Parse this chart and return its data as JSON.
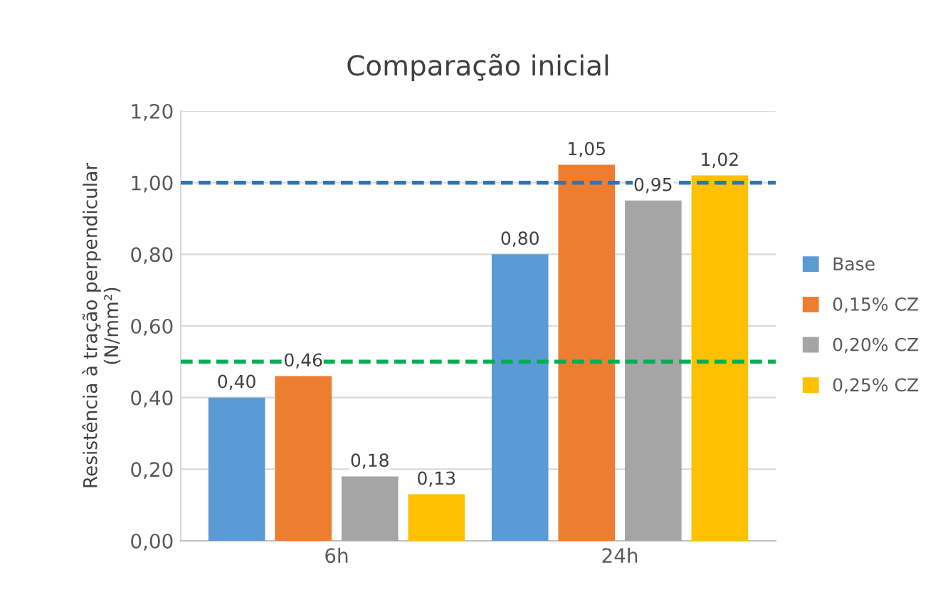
{
  "chart_data": {
    "type": "bar",
    "title": "Comparação inicial",
    "ylabel": "Resistência à tração perpendicular\n(N/mm²)",
    "categories": [
      "6h",
      "24h"
    ],
    "series": [
      {
        "name": "Base",
        "color": "#5b9bd5",
        "values": [
          0.4,
          0.8
        ],
        "value_labels": [
          "0,40",
          "0,80"
        ]
      },
      {
        "name": "0,15% CZ",
        "color": "#ed7d31",
        "values": [
          0.46,
          1.05
        ],
        "value_labels": [
          "0,46",
          "1,05"
        ]
      },
      {
        "name": "0,20% CZ",
        "color": "#a5a5a5",
        "values": [
          0.18,
          0.95
        ],
        "value_labels": [
          "0,18",
          "0,95"
        ]
      },
      {
        "name": "0,25% CZ",
        "color": "#ffc000",
        "values": [
          0.13,
          1.02
        ],
        "value_labels": [
          "0,13",
          "1,02"
        ]
      }
    ],
    "ylim": [
      0,
      1.2
    ],
    "yticks": [
      {
        "value": 0,
        "label": "0,00"
      },
      {
        "value": 0.2,
        "label": "0,20"
      },
      {
        "value": 0.4,
        "label": "0,40"
      },
      {
        "value": 0.6,
        "label": "0,60"
      },
      {
        "value": 0.8,
        "label": "0,80"
      },
      {
        "value": 1.0,
        "label": "1,00"
      },
      {
        "value": 1.2,
        "label": "1,20"
      }
    ],
    "ref_lines": [
      {
        "axis": "y",
        "value": 1.0,
        "color": "#2e75b6",
        "line_style": "dashed"
      },
      {
        "axis": "y",
        "value": 0.5,
        "color": "#00b050",
        "line_style": "dashed"
      }
    ],
    "grid": "y",
    "legend": "right"
  }
}
